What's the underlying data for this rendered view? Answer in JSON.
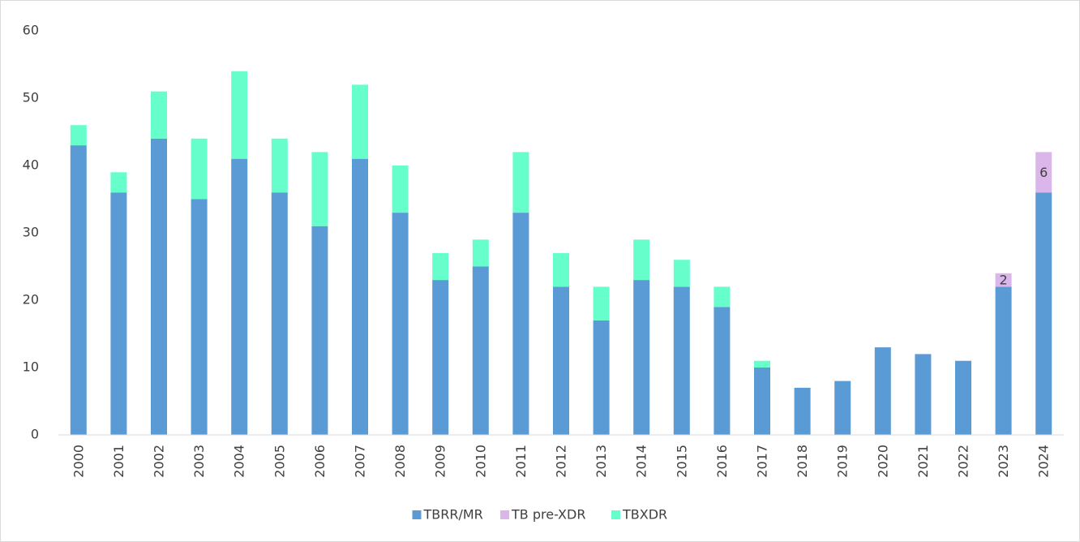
{
  "chart_data": {
    "type": "stacked_bar",
    "categories": [
      "2000",
      "2001",
      "2002",
      "2003",
      "2004",
      "2005",
      "2006",
      "2007",
      "2008",
      "2009",
      "2010",
      "2011",
      "2012",
      "2013",
      "2014",
      "2015",
      "2016",
      "2017",
      "2018",
      "2019",
      "2020",
      "2021",
      "2022",
      "2023",
      "2024"
    ],
    "series": [
      {
        "name": "TBRR/MR",
        "color": "#5b9bd5",
        "values": [
          43,
          36,
          44,
          35,
          41,
          36,
          31,
          41,
          33,
          23,
          25,
          33,
          22,
          17,
          23,
          22,
          19,
          10,
          7,
          8,
          13,
          12,
          11,
          22,
          36
        ]
      },
      {
        "name": "TB pre-XDR",
        "color": "#dbb6ea",
        "show_labels": true,
        "values": [
          null,
          null,
          null,
          null,
          null,
          null,
          null,
          null,
          null,
          null,
          null,
          null,
          null,
          null,
          null,
          null,
          null,
          null,
          null,
          null,
          null,
          null,
          null,
          2,
          6
        ]
      },
      {
        "name": "TBXDR",
        "color": "#66ffcc",
        "values": [
          3,
          3,
          7,
          9,
          13,
          8,
          11,
          11,
          7,
          4,
          4,
          9,
          5,
          5,
          6,
          4,
          3,
          1,
          null,
          null,
          null,
          null,
          null,
          null,
          null
        ]
      }
    ],
    "ylim": [
      0,
      60
    ],
    "yticks": [
      0,
      10,
      20,
      30,
      40,
      50,
      60
    ],
    "grid": false,
    "legend": "bottom"
  }
}
